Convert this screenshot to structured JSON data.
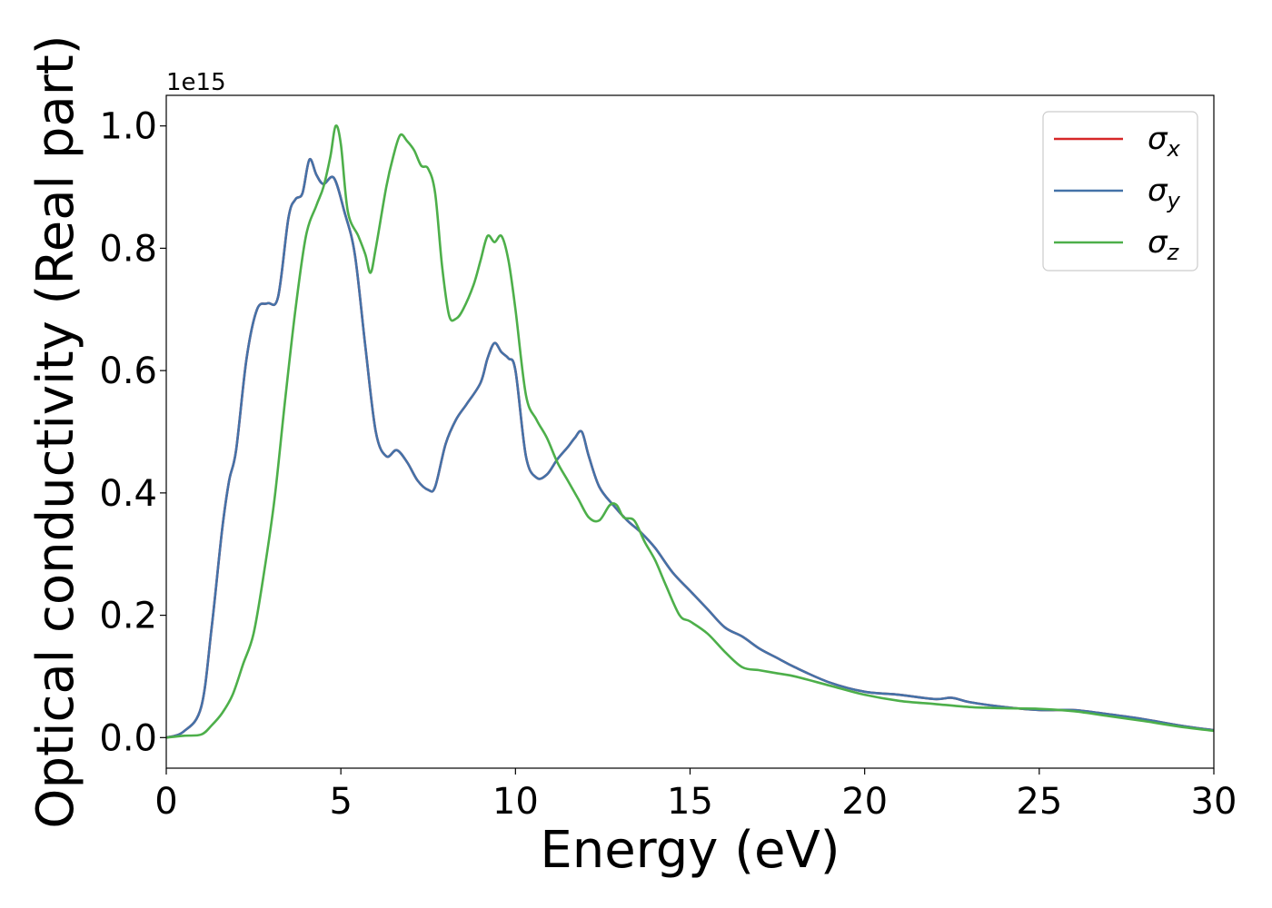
{
  "chart_data": {
    "type": "line",
    "title": "",
    "xlabel": "Energy (eV)",
    "ylabel": "Optical conductivity (Real part)",
    "y_offset_label": "1e15",
    "xlim": [
      0,
      30
    ],
    "ylim": [
      -0.05,
      1.05
    ],
    "x_ticks": [
      0,
      5,
      10,
      15,
      20,
      25,
      30
    ],
    "x_tick_labels": [
      "0",
      "5",
      "10",
      "15",
      "20",
      "25",
      "30"
    ],
    "y_ticks": [
      0.0,
      0.2,
      0.4,
      0.6,
      0.8,
      1.0
    ],
    "y_tick_labels": [
      "0.0",
      "0.2",
      "0.4",
      "0.6",
      "0.8",
      "1.0"
    ],
    "grid": false,
    "legend_position": "top-right",
    "series": [
      {
        "name": "σ",
        "subscript": "x",
        "color": "#d62728",
        "x": [
          0,
          0.5,
          1,
          1.3,
          1.6,
          1.8,
          2,
          2.3,
          2.6,
          2.9,
          3.2,
          3.5,
          3.7,
          3.9,
          4.1,
          4.3,
          4.5,
          4.8,
          5.1,
          5.4,
          5.7,
          6,
          6.3,
          6.6,
          6.9,
          7.2,
          7.5,
          7.7,
          8,
          8.3,
          8.6,
          9,
          9.2,
          9.4,
          9.6,
          9.8,
          10,
          10.3,
          10.6,
          10.9,
          11.2,
          11.5,
          11.7,
          11.9,
          12.1,
          12.4,
          12.8,
          13.2,
          13.6,
          14,
          14.5,
          15,
          15.5,
          16,
          16.5,
          17,
          17.5,
          18,
          19,
          20,
          21,
          22,
          22.5,
          23,
          24,
          25,
          26,
          27,
          28,
          29,
          30
        ],
        "y": [
          0.0,
          0.01,
          0.05,
          0.18,
          0.34,
          0.42,
          0.47,
          0.62,
          0.7,
          0.71,
          0.72,
          0.85,
          0.88,
          0.89,
          0.945,
          0.92,
          0.905,
          0.915,
          0.86,
          0.79,
          0.64,
          0.5,
          0.46,
          0.47,
          0.45,
          0.42,
          0.405,
          0.41,
          0.48,
          0.52,
          0.545,
          0.58,
          0.62,
          0.645,
          0.63,
          0.62,
          0.6,
          0.46,
          0.425,
          0.43,
          0.455,
          0.475,
          0.49,
          0.5,
          0.46,
          0.41,
          0.38,
          0.355,
          0.335,
          0.31,
          0.27,
          0.24,
          0.21,
          0.18,
          0.165,
          0.145,
          0.13,
          0.115,
          0.09,
          0.075,
          0.07,
          0.063,
          0.065,
          0.058,
          0.05,
          0.045,
          0.045,
          0.038,
          0.03,
          0.02,
          0.012
        ]
      },
      {
        "name": "σ",
        "subscript": "y",
        "color": "#4472a8",
        "x": [
          0,
          0.5,
          1,
          1.3,
          1.6,
          1.8,
          2,
          2.3,
          2.6,
          2.9,
          3.2,
          3.5,
          3.7,
          3.9,
          4.1,
          4.3,
          4.5,
          4.8,
          5.1,
          5.4,
          5.7,
          6,
          6.3,
          6.6,
          6.9,
          7.2,
          7.5,
          7.7,
          8,
          8.3,
          8.6,
          9,
          9.2,
          9.4,
          9.6,
          9.8,
          10,
          10.3,
          10.6,
          10.9,
          11.2,
          11.5,
          11.7,
          11.9,
          12.1,
          12.4,
          12.8,
          13.2,
          13.6,
          14,
          14.5,
          15,
          15.5,
          16,
          16.5,
          17,
          17.5,
          18,
          19,
          20,
          21,
          22,
          22.5,
          23,
          24,
          25,
          26,
          27,
          28,
          29,
          30
        ],
        "y": [
          0.0,
          0.01,
          0.05,
          0.18,
          0.34,
          0.42,
          0.47,
          0.62,
          0.7,
          0.71,
          0.72,
          0.85,
          0.88,
          0.89,
          0.945,
          0.92,
          0.905,
          0.915,
          0.86,
          0.79,
          0.64,
          0.5,
          0.46,
          0.47,
          0.45,
          0.42,
          0.405,
          0.41,
          0.48,
          0.52,
          0.545,
          0.58,
          0.62,
          0.645,
          0.63,
          0.62,
          0.6,
          0.46,
          0.425,
          0.43,
          0.455,
          0.475,
          0.49,
          0.5,
          0.46,
          0.41,
          0.38,
          0.355,
          0.335,
          0.31,
          0.27,
          0.24,
          0.21,
          0.18,
          0.165,
          0.145,
          0.13,
          0.115,
          0.09,
          0.075,
          0.07,
          0.063,
          0.065,
          0.058,
          0.05,
          0.045,
          0.045,
          0.038,
          0.03,
          0.02,
          0.012
        ]
      },
      {
        "name": "σ",
        "subscript": "z",
        "color": "#4daf4a",
        "x": [
          0,
          0.5,
          1,
          1.3,
          1.6,
          1.9,
          2.2,
          2.5,
          2.8,
          3.1,
          3.4,
          3.7,
          4.0,
          4.3,
          4.5,
          4.7,
          4.85,
          5.0,
          5.2,
          5.5,
          5.7,
          5.85,
          6.0,
          6.3,
          6.5,
          6.7,
          6.9,
          7.1,
          7.3,
          7.5,
          7.7,
          7.9,
          8.1,
          8.3,
          8.5,
          8.8,
          9.0,
          9.2,
          9.4,
          9.6,
          9.8,
          10.0,
          10.3,
          10.6,
          10.9,
          11.2,
          11.5,
          11.8,
          12.1,
          12.4,
          12.7,
          12.9,
          13.1,
          13.4,
          13.7,
          14.0,
          14.3,
          14.7,
          15.0,
          15.5,
          16.0,
          16.5,
          17.0,
          17.5,
          18.0,
          19.0,
          20.0,
          21.0,
          22.0,
          23.0,
          24.0,
          25.0,
          26.0,
          27.0,
          28.0,
          29.0,
          30.0
        ],
        "y": [
          0.0,
          0.003,
          0.005,
          0.02,
          0.04,
          0.07,
          0.12,
          0.17,
          0.27,
          0.39,
          0.55,
          0.7,
          0.82,
          0.87,
          0.9,
          0.95,
          1.0,
          0.97,
          0.86,
          0.82,
          0.79,
          0.76,
          0.8,
          0.9,
          0.95,
          0.985,
          0.975,
          0.96,
          0.935,
          0.93,
          0.89,
          0.77,
          0.69,
          0.685,
          0.7,
          0.74,
          0.78,
          0.82,
          0.81,
          0.82,
          0.78,
          0.7,
          0.56,
          0.52,
          0.49,
          0.45,
          0.42,
          0.39,
          0.36,
          0.355,
          0.38,
          0.38,
          0.36,
          0.355,
          0.32,
          0.29,
          0.25,
          0.2,
          0.19,
          0.17,
          0.14,
          0.115,
          0.11,
          0.105,
          0.1,
          0.085,
          0.07,
          0.06,
          0.055,
          0.05,
          0.048,
          0.047,
          0.043,
          0.035,
          0.027,
          0.018,
          0.011
        ]
      }
    ]
  }
}
